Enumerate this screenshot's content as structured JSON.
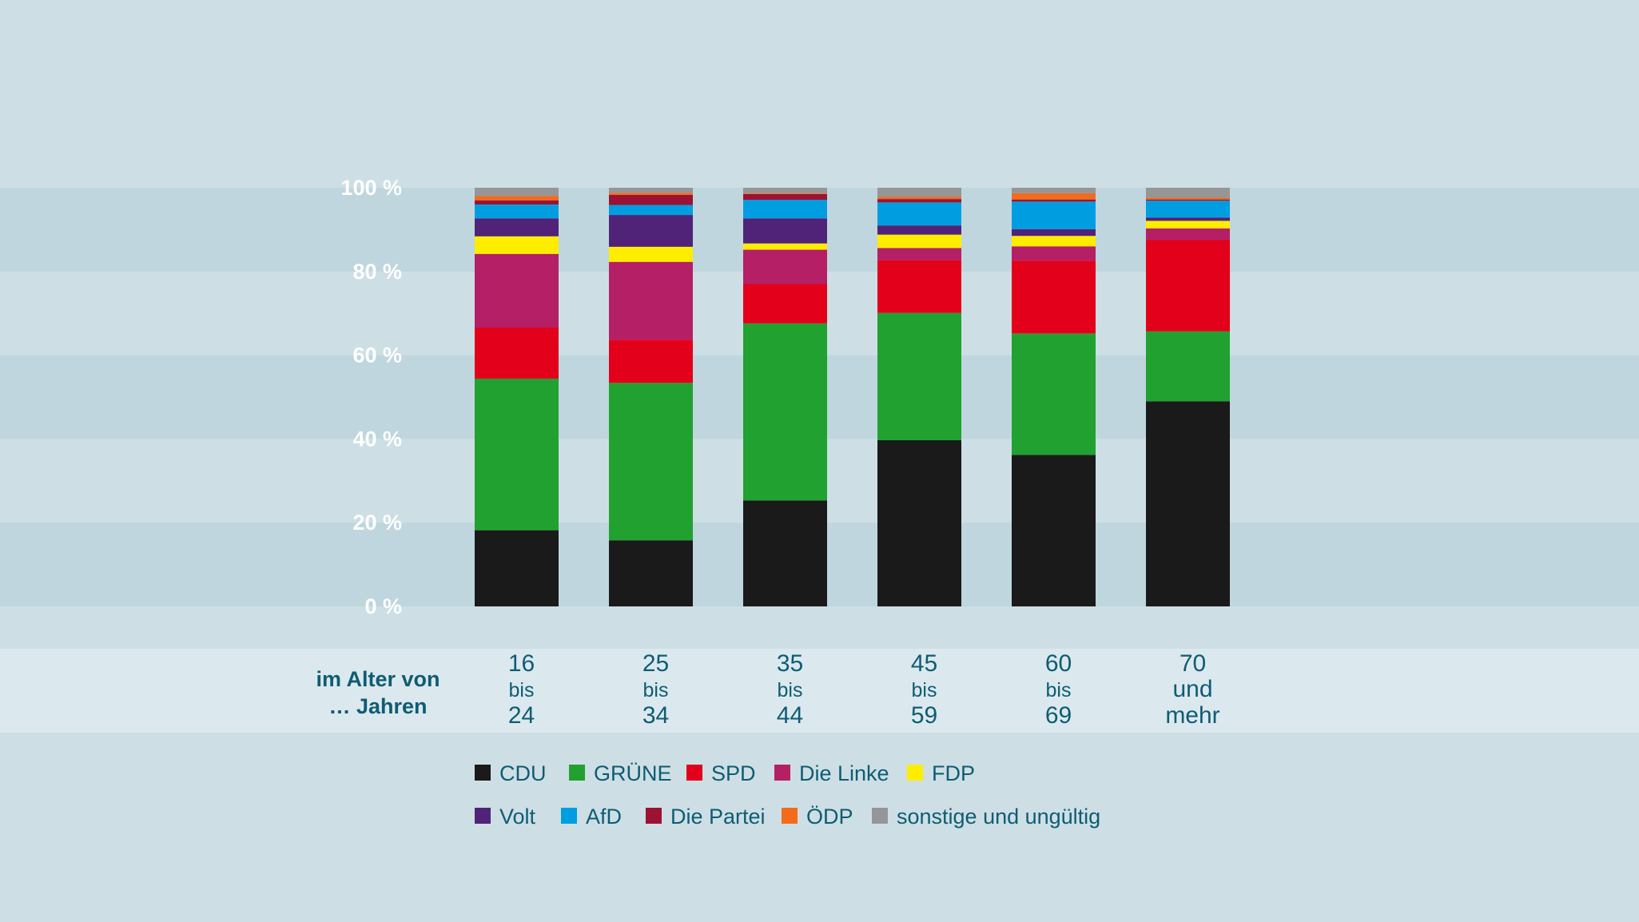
{
  "chart_data": {
    "type": "bar",
    "stacked": true,
    "title": "",
    "xlabel": "im Alter von … Jahren",
    "xlabel_lines": [
      "im Alter von",
      "… Jahren"
    ],
    "ylabel": "",
    "ylim": [
      0,
      100
    ],
    "yticks": [
      0,
      20,
      40,
      60,
      80,
      100
    ],
    "ytick_labels": [
      "0 %",
      "20 %",
      "40 %",
      "60 %",
      "80 %",
      "100 %"
    ],
    "categories": [
      "16 bis 24",
      "25 bis 34",
      "35 bis 44",
      "45 bis 59",
      "60 bis 69",
      "70 und mehr"
    ],
    "category_lines": [
      [
        "16",
        "bis",
        "24"
      ],
      [
        "25",
        "bis",
        "34"
      ],
      [
        "35",
        "bis",
        "44"
      ],
      [
        "45",
        "bis",
        "59"
      ],
      [
        "60",
        "bis",
        "69"
      ],
      [
        "70",
        "und",
        "mehr"
      ]
    ],
    "legend_position": "bottom",
    "grid": "alternating horizontal bands",
    "series": [
      {
        "name": "CDU",
        "color": "#1a1a1a",
        "values": [
          18.2,
          15.8,
          25.3,
          39.7,
          36.2,
          49.0
        ]
      },
      {
        "name": "GRÜNE",
        "color": "#21a12f",
        "values": [
          36.2,
          37.6,
          42.3,
          30.4,
          29.0,
          16.7
        ]
      },
      {
        "name": "SPD",
        "color": "#e2001a",
        "values": [
          12.2,
          10.3,
          9.4,
          12.6,
          17.4,
          21.8
        ]
      },
      {
        "name": "Die Linke",
        "color": "#b51f66",
        "values": [
          17.6,
          18.6,
          8.2,
          2.9,
          3.4,
          2.8
        ]
      },
      {
        "name": "FDP",
        "color": "#ffed00",
        "values": [
          4.2,
          3.6,
          1.5,
          3.2,
          2.5,
          1.8
        ]
      },
      {
        "name": "Volt",
        "color": "#502379",
        "values": [
          4.3,
          7.6,
          6.0,
          2.2,
          1.6,
          0.8
        ]
      },
      {
        "name": "AfD",
        "color": "#009ee0",
        "values": [
          3.3,
          2.4,
          4.4,
          5.5,
          6.6,
          4.0
        ]
      },
      {
        "name": "Die Partei",
        "color": "#9c1234",
        "values": [
          1.0,
          2.4,
          1.4,
          0.8,
          0.5,
          0.3
        ]
      },
      {
        "name": "ÖDP",
        "color": "#f36b1c",
        "values": [
          1.0,
          0.5,
          0.2,
          0.5,
          1.5,
          0.4
        ]
      },
      {
        "name": "sonstige und ungültig",
        "color": "#969696",
        "values": [
          2.0,
          1.2,
          1.3,
          2.2,
          1.3,
          2.4
        ]
      }
    ]
  }
}
